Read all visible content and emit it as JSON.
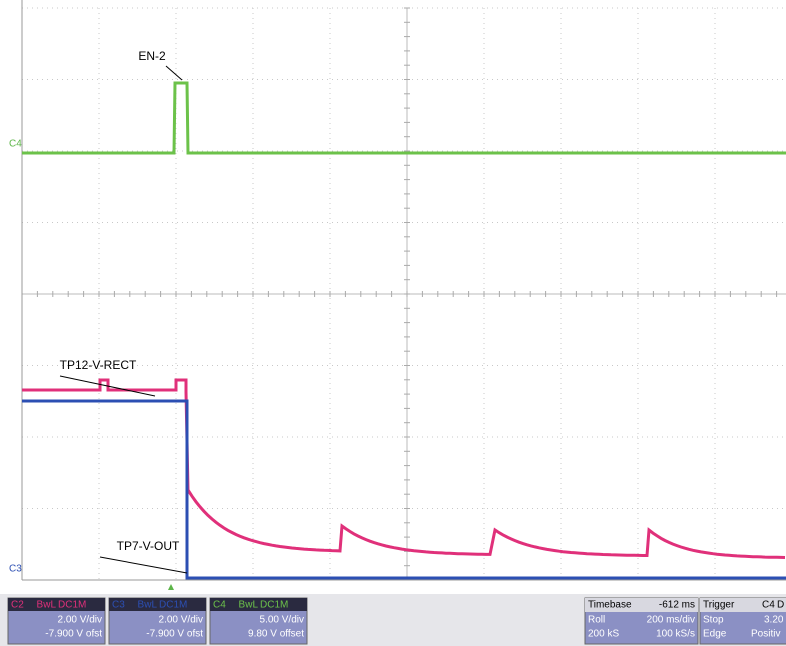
{
  "annotations": {
    "en2": "EN-2",
    "tp12": "TP12-V-RECT",
    "tp7": "TP7-V-OUT"
  },
  "markers": {
    "c4": "C4",
    "c3": "C3"
  },
  "channels": [
    {
      "name": "C2",
      "bw": "BwL",
      "coupling": "DC1M",
      "scale": "2.00 V/div",
      "offset": "-7.900 V ofst"
    },
    {
      "name": "C3",
      "bw": "BwL",
      "coupling": "DC1M",
      "scale": "2.00 V/div",
      "offset": "-7.900 V ofst"
    },
    {
      "name": "C4",
      "bw": "BwL",
      "coupling": "DC1M",
      "scale": "5.00 V/div",
      "offset": "9.80 V offset"
    }
  ],
  "timebase": {
    "label": "Timebase",
    "delay": "-612 ms",
    "mode": "Roll",
    "scale": "200 ms/div",
    "samples": "200 kS",
    "rate": "100 kS/s"
  },
  "trigger": {
    "label": "Trigger",
    "source": "C4",
    "coupling": "D",
    "state": "Stop",
    "level": "3.20",
    "type": "Edge",
    "slope": "Positiv"
  }
}
